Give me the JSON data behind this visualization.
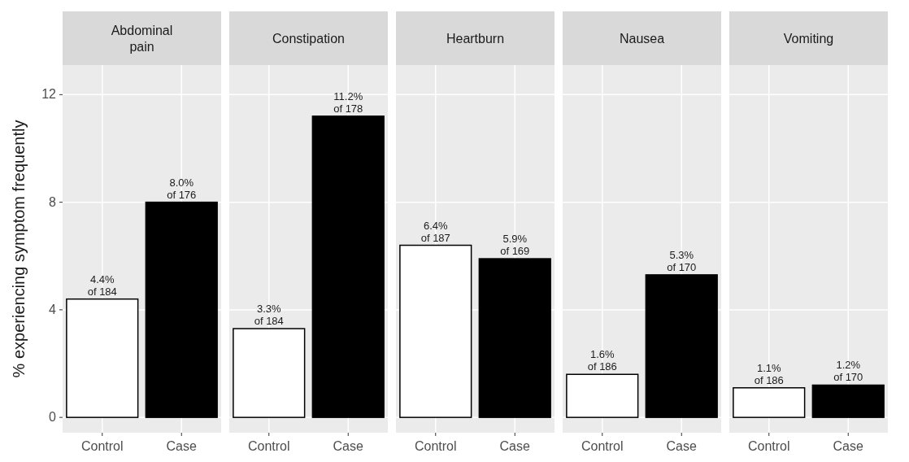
{
  "chart_data": [
    {
      "type": "bar",
      "title": "Abdominal pain",
      "ylabel": "% experiencing symptom frequently",
      "categories": [
        "Control",
        "Case"
      ],
      "values": [
        4.4,
        8.0
      ],
      "colors": [
        "#ffffff",
        "#000000"
      ],
      "value_labels": [
        "4.4%\nof 184",
        "8.0%\nof 176"
      ],
      "ylim": [
        -0.57,
        13.1
      ],
      "yticks": [
        0,
        4,
        8,
        12
      ],
      "grid": true
    },
    {
      "type": "bar",
      "title": "Constipation",
      "categories": [
        "Control",
        "Case"
      ],
      "values": [
        3.3,
        11.2
      ],
      "colors": [
        "#ffffff",
        "#000000"
      ],
      "value_labels": [
        "3.3%\nof 184",
        "11.2%\nof 178"
      ],
      "ylim": [
        -0.57,
        13.1
      ],
      "yticks": [
        0,
        4,
        8,
        12
      ],
      "grid": true,
      "tick_labels": "x"
    },
    {
      "type": "bar",
      "title": "Heartburn",
      "categories": [
        "Control",
        "Case"
      ],
      "values": [
        6.4,
        5.9
      ],
      "colors": [
        "#ffffff",
        "#000000"
      ],
      "value_labels": [
        "6.4%\nof 187",
        "5.9%\nof 169"
      ],
      "ylim": [
        -0.57,
        13.1
      ],
      "yticks": [
        0,
        4,
        8,
        12
      ],
      "grid": true,
      "tick_labels": "x"
    },
    {
      "type": "bar",
      "title": "Nausea",
      "categories": [
        "Control",
        "Case"
      ],
      "values": [
        1.6,
        5.3
      ],
      "colors": [
        "#ffffff",
        "#000000"
      ],
      "value_labels": [
        "1.6%\nof 186",
        "5.3%\nof 170"
      ],
      "ylim": [
        -0.57,
        13.1
      ],
      "yticks": [
        0,
        4,
        8,
        12
      ],
      "grid": true,
      "tick_labels": "x"
    },
    {
      "type": "bar",
      "title": "Vomiting",
      "categories": [
        "Control",
        "Case"
      ],
      "values": [
        1.1,
        1.2
      ],
      "colors": [
        "#ffffff",
        "#000000"
      ],
      "value_labels": [
        "1.1%\nof 186",
        "1.2%\nof 170"
      ],
      "ylim": [
        -0.57,
        13.1
      ],
      "yticks": [
        0,
        4,
        8,
        12
      ],
      "grid": true,
      "tick_labels": "x"
    }
  ]
}
